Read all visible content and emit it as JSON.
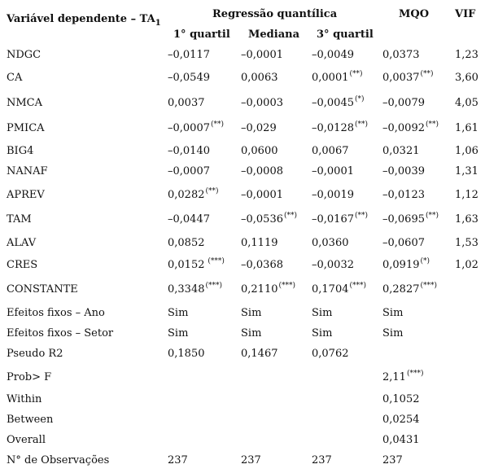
{
  "header": {
    "dep_var": "Variável dependente – TA",
    "dep_var_sub": "1",
    "regression_group": "Regressão quantílica",
    "mqo": "MQO",
    "vif": "VIF",
    "q1": "1° quartil",
    "mediana": "Mediana",
    "q3": "3° quartil"
  },
  "rows": [
    {
      "label": "NDGC",
      "q1": "–0,0117",
      "q1_sig": "",
      "med": "–0,0001",
      "med_sig": "",
      "q3": "–0,0049",
      "q3_sig": "",
      "mqo": "0,0373",
      "mqo_sig": "",
      "vif": "1,23"
    },
    {
      "label": "CA",
      "q1": "–0,0549",
      "q1_sig": "",
      "med": "0,0063",
      "med_sig": "",
      "q3": "0,0001",
      "q3_sig": "(**)",
      "mqo": "0,0037",
      "mqo_sig": "(**)",
      "vif": "3,60"
    },
    {
      "label": "NMCA",
      "q1": "0,0037",
      "q1_sig": "",
      "med": "–0,0003",
      "med_sig": "",
      "q3": "–0,0045",
      "q3_sig": "(*)",
      "mqo": "–0,0079",
      "mqo_sig": "",
      "vif": "4,05"
    },
    {
      "label": "PMICA",
      "q1": "–0,0007",
      "q1_sig": "(**)",
      "med": "–0,029",
      "med_sig": "",
      "q3": "–0,0128",
      "q3_sig": "(**)",
      "mqo": "–0,0092",
      "mqo_sig": "(**)",
      "vif": "1,61"
    },
    {
      "label": "BIG4",
      "q1": "–0,0140",
      "q1_sig": "",
      "med": "0,0600",
      "med_sig": "",
      "q3": "0,0067",
      "q3_sig": "",
      "mqo": "0,0321",
      "mqo_sig": "",
      "vif": "1,06"
    },
    {
      "label": "NANAF",
      "q1": "–0,0007",
      "q1_sig": "",
      "med": "–0,0008",
      "med_sig": "",
      "q3": "–0,0001",
      "q3_sig": "",
      "mqo": "–0,0039",
      "mqo_sig": "",
      "vif": "1,31"
    },
    {
      "label": "APREV",
      "q1": "0,0282",
      "q1_sig": "(**)",
      "med": "–0,0001",
      "med_sig": "",
      "q3": "–0,0019",
      "q3_sig": "",
      "mqo": "–0,0123",
      "mqo_sig": "",
      "vif": "1,12"
    },
    {
      "label": "TAM",
      "q1": "–0,0447",
      "q1_sig": "",
      "med": "–0,0536",
      "med_sig": "(**)",
      "q3": "–0,0167",
      "q3_sig": "(**)",
      "mqo": "–0,0695",
      "mqo_sig": "(**)",
      "vif": "1,63"
    },
    {
      "label": "ALAV",
      "q1": "0,0852",
      "q1_sig": "",
      "med": "0,1119",
      "med_sig": "",
      "q3": "0,0360",
      "q3_sig": "",
      "mqo": "–0,0607",
      "mqo_sig": "",
      "vif": "1,53"
    },
    {
      "label": "CRES",
      "q1": "0,0152",
      "q1_sig": " (***)",
      "med": "–0,0368",
      "med_sig": "",
      "q3": "–0,0032",
      "q3_sig": "",
      "mqo": "0,0919",
      "mqo_sig": "(*)",
      "vif": "1,02"
    },
    {
      "label": "CONSTANTE",
      "q1": "0,3348",
      "q1_sig": "(***)",
      "med": "0,2110",
      "med_sig": "(***)",
      "q3": "0,1704",
      "q3_sig": "(***)",
      "mqo": "0,2827",
      "mqo_sig": "(***)",
      "vif": ""
    },
    {
      "label": "Efeitos fixos – Ano",
      "q1": "Sim",
      "q1_sig": "",
      "med": "Sim",
      "med_sig": "",
      "q3": "Sim",
      "q3_sig": "",
      "mqo": "Sim",
      "mqo_sig": "",
      "vif": ""
    },
    {
      "label": "Efeitos fixos – Setor",
      "q1": "Sim",
      "q1_sig": "",
      "med": "Sim",
      "med_sig": "",
      "q3": "Sim",
      "q3_sig": "",
      "mqo": "Sim",
      "mqo_sig": "",
      "vif": ""
    },
    {
      "label": "Pseudo R2",
      "q1": "0,1850",
      "q1_sig": "",
      "med": "0,1467",
      "med_sig": "",
      "q3": "0,0762",
      "q3_sig": "",
      "mqo": "",
      "mqo_sig": "",
      "vif": ""
    },
    {
      "label": "Prob> F",
      "q1": "",
      "q1_sig": "",
      "med": "",
      "med_sig": "",
      "q3": "",
      "q3_sig": "",
      "mqo": "2,11",
      "mqo_sig": "(***)",
      "vif": ""
    },
    {
      "label": "Within",
      "q1": "",
      "q1_sig": "",
      "med": "",
      "med_sig": "",
      "q3": "",
      "q3_sig": "",
      "mqo": "0,1052",
      "mqo_sig": "",
      "vif": ""
    },
    {
      "label": "Between",
      "q1": "",
      "q1_sig": "",
      "med": "",
      "med_sig": "",
      "q3": "",
      "q3_sig": "",
      "mqo": "0,0254",
      "mqo_sig": "",
      "vif": ""
    },
    {
      "label": "Overall",
      "q1": "",
      "q1_sig": "",
      "med": "",
      "med_sig": "",
      "q3": "",
      "q3_sig": "",
      "mqo": "0,0431",
      "mqo_sig": "",
      "vif": ""
    },
    {
      "label": "N° de Observações",
      "q1": "237",
      "q1_sig": "",
      "med": "237",
      "med_sig": "",
      "q3": "237",
      "q3_sig": "",
      "mqo": "237",
      "mqo_sig": "",
      "vif": ""
    }
  ]
}
